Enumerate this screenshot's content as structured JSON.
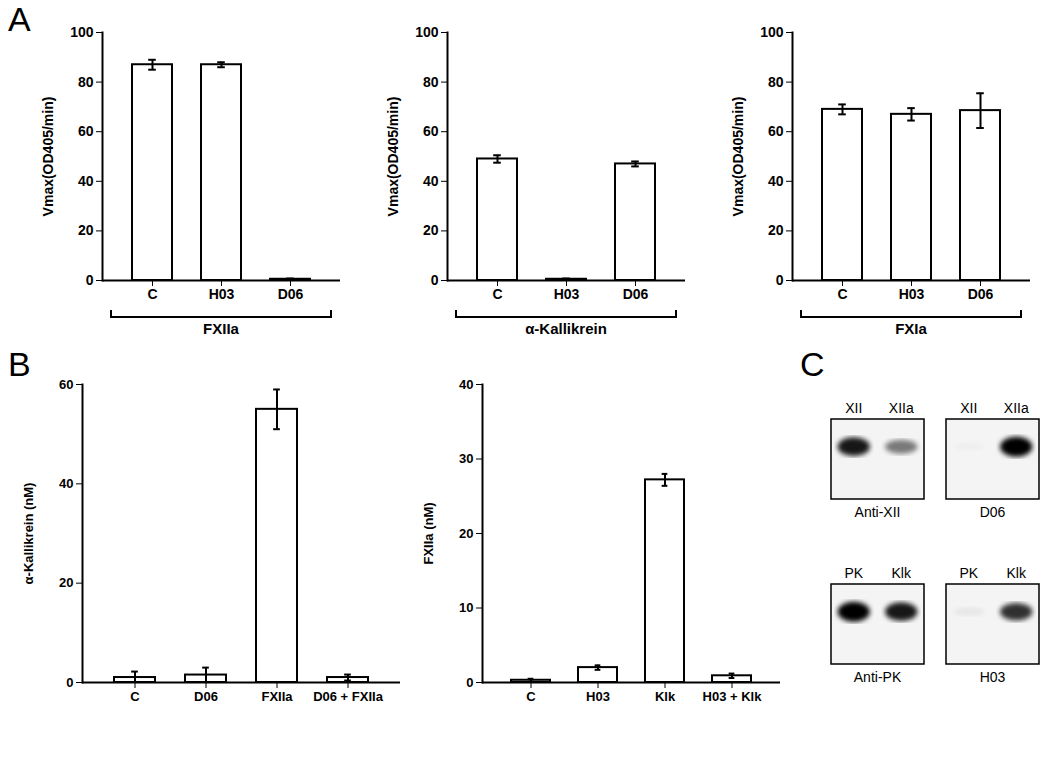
{
  "chart_data": [
    {
      "type": "bar",
      "ylabel": "Vmax(OD405/min)",
      "xlabel": "FXIIa",
      "categories": [
        "C",
        "H03",
        "D06"
      ],
      "values": [
        87,
        87,
        0.5
      ],
      "errors": [
        2,
        1,
        0.3
      ],
      "color": "#ffffff",
      "ylim": [
        0,
        100
      ],
      "yticks": [
        0,
        20,
        40,
        60,
        80,
        100
      ]
    },
    {
      "type": "bar",
      "ylabel": "Vmax(OD405/min)",
      "xlabel": "α-Kallikrein",
      "categories": [
        "C",
        "H03",
        "D06"
      ],
      "values": [
        49,
        0.5,
        47
      ],
      "errors": [
        1.5,
        0.3,
        1
      ],
      "color": "#ffffff",
      "ylim": [
        0,
        100
      ],
      "yticks": [
        0,
        20,
        40,
        60,
        80,
        100
      ]
    },
    {
      "type": "bar",
      "ylabel": "Vmax(OD405/min)",
      "xlabel": "FXIa",
      "categories": [
        "C",
        "H03",
        "D06"
      ],
      "values": [
        69,
        67,
        68.5
      ],
      "errors": [
        2,
        2.5,
        7
      ],
      "color": "#ffffff",
      "ylim": [
        0,
        100
      ],
      "yticks": [
        0,
        20,
        40,
        60,
        80,
        100
      ]
    },
    {
      "type": "bar",
      "ylabel": "α-Kallikrein (nM)",
      "categories": [
        "C",
        "D06",
        "FXIIa",
        "D06 + FXIIa"
      ],
      "values": [
        1,
        1.5,
        55,
        1
      ],
      "errors": [
        1.2,
        1.5,
        4,
        0.6
      ],
      "color": "#ffffff",
      "ylim": [
        0,
        60
      ],
      "yticks": [
        0,
        20,
        40,
        60
      ]
    },
    {
      "type": "bar",
      "ylabel": "FXIIa (nM)",
      "categories": [
        "C",
        "H03",
        "Klk",
        "H03 + Klk"
      ],
      "values": [
        0.3,
        2,
        27.2,
        0.9
      ],
      "errors": [
        0.2,
        0.3,
        0.8,
        0.3
      ],
      "color": "#ffffff",
      "ylim": [
        0,
        40
      ],
      "yticks": [
        0,
        10,
        20,
        30,
        40
      ]
    }
  ],
  "panel_labels": [
    "A",
    "B",
    "C"
  ],
  "blots": [
    {
      "lanes": [
        "XII",
        "XIIa"
      ],
      "caption": "Anti-XII",
      "band_intensity": [
        0.9,
        0.5
      ]
    },
    {
      "lanes": [
        "XII",
        "XIIa"
      ],
      "caption": "D06",
      "band_intensity": [
        0.02,
        1
      ]
    },
    {
      "lanes": [
        "PK",
        "Klk"
      ],
      "caption": "Anti-PK",
      "band_intensity": [
        1,
        0.9
      ]
    },
    {
      "lanes": [
        "PK",
        "Klk"
      ],
      "caption": "H03",
      "band_intensity": [
        0.05,
        0.8
      ]
    }
  ]
}
